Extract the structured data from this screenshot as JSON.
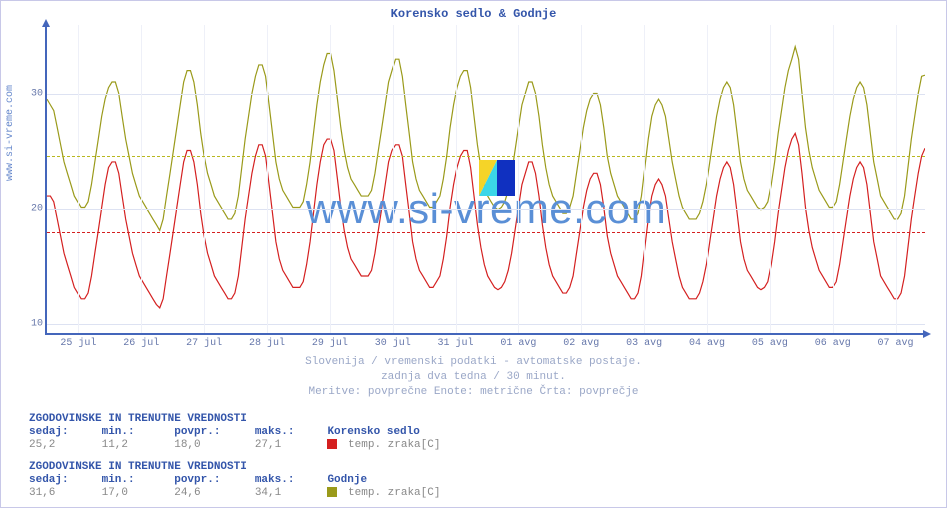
{
  "title": "Korensko sedlo & Godnje",
  "source_label": "www.si-vreme.com",
  "watermark_text": "www.si-vreme.com",
  "chart": {
    "type": "line",
    "background_color": "#ffffff",
    "axis_color": "#4466bb",
    "grid_color": "#dde2f2",
    "grid_color_minor": "#eef0f8",
    "label_color": "#6677aa",
    "ylim": [
      9,
      36
    ],
    "yticks": [
      10,
      20,
      30
    ],
    "xticks": [
      "25 jul",
      "26 jul",
      "27 jul",
      "28 jul",
      "29 jul",
      "30 jul",
      "31 jul",
      "01 avg",
      "02 avg",
      "03 avg",
      "04 avg",
      "05 avg",
      "06 avg",
      "07 avg"
    ],
    "series": [
      {
        "name": "Korensko sedlo",
        "label": "temp. zraka[C]",
        "color": "#d42020",
        "avg_line_color": "#d42020",
        "avg": 18.0,
        "data": [
          21,
          21,
          20.5,
          19,
          17.5,
          16,
          15,
          14,
          13,
          12.5,
          12,
          12,
          12.5,
          14,
          16,
          18,
          20,
          22,
          23.5,
          24,
          24,
          23,
          21,
          19,
          17.5,
          16,
          15,
          14,
          13.5,
          13,
          12.5,
          12,
          11.5,
          11.2,
          12,
          14,
          16,
          18,
          20,
          22,
          24,
          25,
          25,
          24,
          22,
          19.5,
          17.5,
          16,
          15,
          14,
          13.5,
          13,
          12.5,
          12,
          12,
          12.5,
          14,
          16.5,
          19,
          21,
          23,
          24.5,
          25.5,
          25.5,
          24.5,
          22,
          19.5,
          17,
          15.5,
          14.5,
          14,
          13.5,
          13,
          13,
          13,
          13.5,
          15,
          17,
          19.5,
          22,
          24,
          25.5,
          26,
          26,
          25,
          22.5,
          20,
          18,
          16.5,
          15.5,
          15,
          14.5,
          14,
          14,
          14,
          14.5,
          16,
          18,
          20,
          22,
          24,
          25,
          25.5,
          25.5,
          24.5,
          22,
          19.5,
          17,
          15.5,
          14.5,
          14,
          13.5,
          13,
          13,
          13.5,
          14,
          15.5,
          17.5,
          20,
          22,
          23.5,
          24.5,
          25,
          25,
          23.5,
          21,
          18.5,
          16.5,
          15,
          14,
          13.5,
          13,
          12.8,
          13,
          13.5,
          14.5,
          16,
          18,
          20,
          22,
          23,
          24,
          24,
          23,
          21,
          18.5,
          16.5,
          15,
          14,
          13.5,
          13,
          12.5,
          12.5,
          13,
          14,
          16,
          18,
          20,
          21.5,
          22.5,
          23,
          23,
          22,
          20,
          17.5,
          16,
          15,
          14,
          13.5,
          13,
          12.5,
          12,
          12,
          12.5,
          14,
          16.5,
          19,
          21,
          22,
          22.5,
          22,
          21,
          19,
          17,
          15.5,
          14,
          13,
          12.5,
          12,
          12,
          12,
          12.5,
          13.5,
          15,
          17,
          19,
          21,
          22.5,
          23.5,
          24,
          23.5,
          22,
          19.5,
          17,
          15.5,
          14.5,
          14,
          13.5,
          13,
          12.8,
          13,
          13.5,
          15,
          17,
          19.5,
          21.5,
          23.5,
          25,
          26,
          26.5,
          25.5,
          23,
          20,
          18,
          16.5,
          15.5,
          14.5,
          14,
          13.5,
          13,
          13,
          13.5,
          15,
          17,
          19,
          21,
          22.5,
          23.5,
          24,
          23.5,
          22,
          19.5,
          17,
          15.5,
          14,
          13.5,
          13,
          12.5,
          12,
          12,
          12.5,
          14,
          16.5,
          19,
          21,
          23,
          24.5,
          25.2
        ]
      },
      {
        "name": "Godnje",
        "label": "temp. zraka[C]",
        "color": "#9a9a1a",
        "avg_line_color": "#b8b820",
        "avg": 24.6,
        "data": [
          29.5,
          29,
          28.5,
          27,
          25.5,
          24,
          23,
          22,
          21,
          20.5,
          20,
          20,
          20.5,
          22,
          24,
          26,
          28,
          29.5,
          30.5,
          31,
          31,
          30,
          28,
          26,
          24.5,
          23,
          22,
          21,
          20.5,
          20,
          19.5,
          19,
          18.5,
          18,
          19,
          21,
          23,
          25,
          27,
          29,
          31,
          32,
          32,
          31,
          29,
          26.5,
          24.5,
          23,
          22,
          21,
          20.5,
          20,
          19.5,
          19,
          19,
          19.5,
          21,
          23.5,
          26,
          28,
          30,
          31.5,
          32.5,
          32.5,
          31.5,
          29,
          26.5,
          24,
          22.5,
          21.5,
          21,
          20.5,
          20,
          20,
          20,
          20.5,
          22,
          24,
          26.5,
          29,
          31,
          32.5,
          33.5,
          33.5,
          32,
          29.5,
          27,
          25,
          23.5,
          22.5,
          22,
          21.5,
          21,
          21,
          21,
          21.5,
          23,
          25,
          27,
          29,
          31,
          32,
          33,
          33,
          31.5,
          29,
          26.5,
          24,
          22.5,
          21.5,
          21,
          20.5,
          20,
          20,
          20.5,
          21,
          22.5,
          24.5,
          27,
          29,
          30.5,
          31.5,
          32,
          32,
          30.5,
          28,
          25.5,
          23.5,
          22,
          21,
          20.5,
          20,
          19.8,
          20,
          20.5,
          21.5,
          23,
          25,
          27,
          29,
          30,
          31,
          31,
          30,
          28,
          25.5,
          23.5,
          22,
          21,
          20.5,
          20,
          19.5,
          19.5,
          20,
          21,
          23,
          25,
          27,
          28.5,
          29.5,
          30,
          30,
          29,
          27,
          24.5,
          23,
          22,
          21,
          20.5,
          20,
          19.5,
          19,
          19,
          19.5,
          21,
          23.5,
          26,
          28,
          29,
          29.5,
          29,
          28,
          26,
          24,
          22.5,
          21,
          20,
          19.5,
          19,
          19,
          19,
          19.5,
          20.5,
          22,
          24,
          26,
          28,
          29.5,
          30.5,
          31,
          30.5,
          29,
          26.5,
          24,
          22.5,
          21.5,
          21,
          20.5,
          20,
          19.8,
          20,
          20.5,
          22,
          24,
          26.5,
          28.5,
          30.5,
          32,
          33,
          34.1,
          33,
          30,
          27,
          25,
          23.5,
          22.5,
          21.5,
          21,
          20.5,
          20,
          20,
          20.5,
          22,
          24,
          26,
          28,
          29.5,
          30.5,
          31,
          30.5,
          29,
          26.5,
          24,
          22.5,
          21,
          20.5,
          20,
          19.5,
          19,
          19,
          19.5,
          21,
          23.5,
          26,
          28,
          30,
          31.5,
          31.6
        ]
      }
    ]
  },
  "caption": {
    "line1": "Slovenija / vremenski podatki - avtomatske postaje.",
    "line2": "zadnja dva tedna / 30 minut.",
    "line3": "Meritve: povprečne  Enote: metrične  Črta: povprečje"
  },
  "stats": [
    {
      "title": "ZGODOVINSKE IN TRENUTNE VREDNOSTI",
      "headers": {
        "now": "sedaj:",
        "min": "min.:",
        "avg": "povpr.:",
        "max": "maks.:"
      },
      "values": {
        "now": "25,2",
        "min": "11,2",
        "avg": "18,0",
        "max": "27,1"
      },
      "series_name": "Korensko sedlo",
      "series_label": "temp. zraka[C]",
      "swatch_color": "#d42020"
    },
    {
      "title": "ZGODOVINSKE IN TRENUTNE VREDNOSTI",
      "headers": {
        "now": "sedaj:",
        "min": "min.:",
        "avg": "povpr.:",
        "max": "maks.:"
      },
      "values": {
        "now": "31,6",
        "min": "17,0",
        "avg": "24,6",
        "max": "34,1"
      },
      "series_name": "Godnje",
      "series_label": "temp. zraka[C]",
      "swatch_color": "#9a9a1a"
    }
  ]
}
